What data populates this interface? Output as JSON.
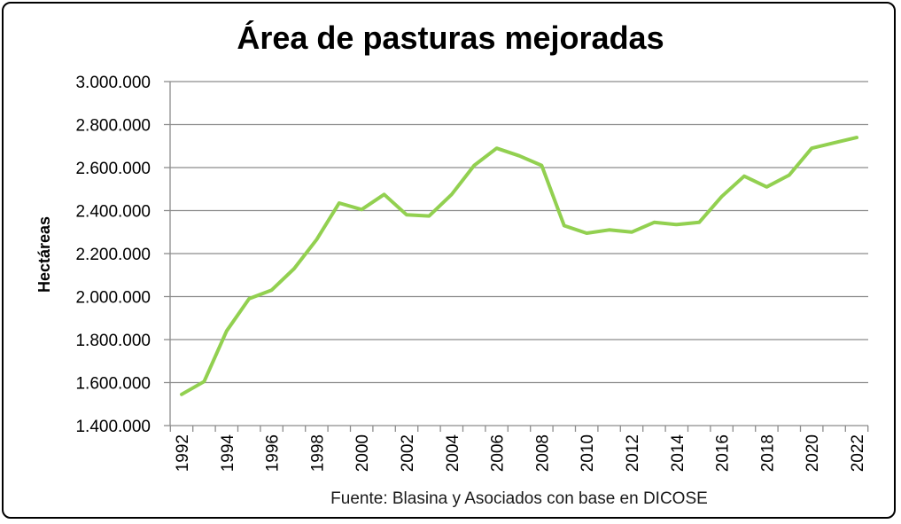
{
  "chart_data": {
    "type": "line",
    "title": "Área de pasturas mejoradas",
    "xlabel": "",
    "ylabel": "Hectáreas",
    "source": "Fuente: Blasina y Asociados con base en DICOSE",
    "ylim": [
      1400000,
      3000000
    ],
    "yticks": [
      "1.400.000",
      "1.600.000",
      "1.800.000",
      "2.000.000",
      "2.200.000",
      "2.400.000",
      "2.600.000",
      "2.800.000",
      "3.000.000"
    ],
    "ytick_values": [
      1400000,
      1600000,
      1800000,
      2000000,
      2200000,
      2400000,
      2600000,
      2800000,
      3000000
    ],
    "xtick_labels": [
      "1992",
      "1994",
      "1996",
      "1998",
      "2000",
      "2002",
      "2004",
      "2006",
      "2008",
      "2010",
      "2012",
      "2014",
      "2016",
      "2018",
      "2020",
      "2022"
    ],
    "grid": true,
    "legend": "none",
    "series": [
      {
        "color": "#92d050",
        "x": [
          1992,
          1993,
          1994,
          1995,
          1996,
          1997,
          1998,
          1999,
          2000,
          2001,
          2002,
          2003,
          2004,
          2005,
          2006,
          2007,
          2008,
          2009,
          2010,
          2011,
          2012,
          2013,
          2014,
          2015,
          2016,
          2017,
          2018,
          2019,
          2020,
          2021,
          2022
        ],
        "values": [
          1545000,
          1605000,
          1840000,
          1990000,
          2030000,
          2130000,
          2265000,
          2435000,
          2405000,
          2475000,
          2380000,
          2375000,
          2475000,
          2610000,
          2690000,
          2655000,
          2610000,
          2330000,
          2295000,
          2310000,
          2300000,
          2345000,
          2335000,
          2345000,
          2465000,
          2560000,
          2510000,
          2565000,
          2690000,
          2715000,
          2740000
        ]
      }
    ]
  }
}
